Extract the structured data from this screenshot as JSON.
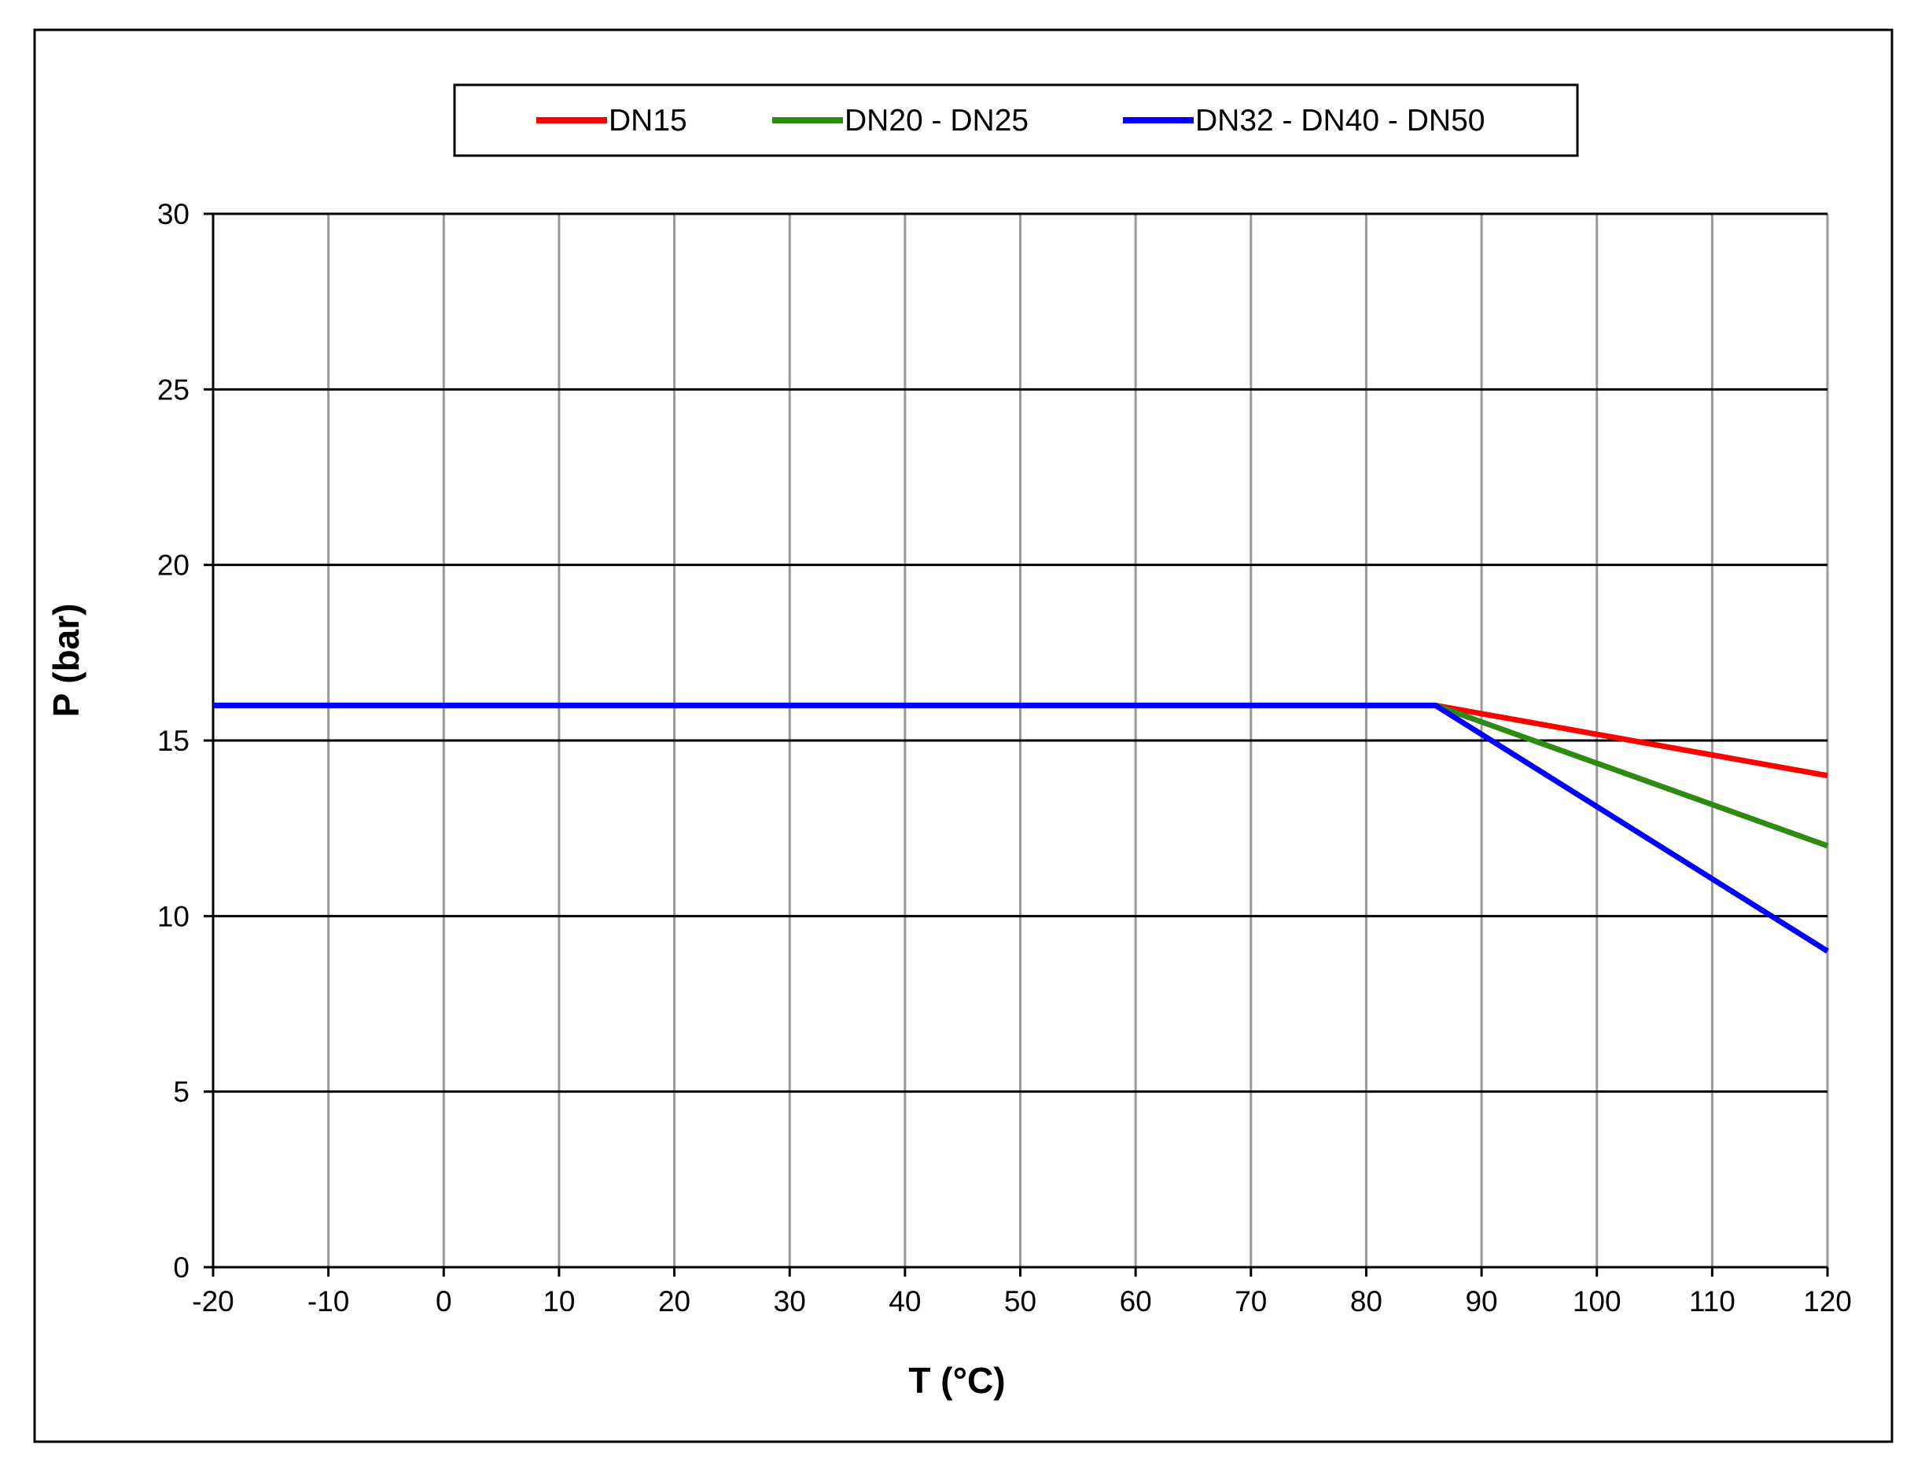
{
  "chart_data": {
    "type": "line",
    "title": "",
    "xlabel": "T (°C)",
    "ylabel": "P (bar)",
    "xlim": [
      -20,
      120
    ],
    "ylim": [
      0,
      30
    ],
    "xticks": [
      -20,
      -10,
      0,
      10,
      20,
      30,
      40,
      50,
      60,
      70,
      80,
      90,
      100,
      110,
      120
    ],
    "yticks": [
      0,
      5,
      10,
      15,
      20,
      25,
      30
    ],
    "grid": true,
    "legend_position": "top",
    "series": [
      {
        "name": "DN15",
        "color": "#ff0000",
        "x": [
          -20,
          86,
          120
        ],
        "y": [
          16,
          16,
          14
        ]
      },
      {
        "name": "DN20 - DN25",
        "color": "#2e8b12",
        "x": [
          -20,
          86,
          120
        ],
        "y": [
          16,
          16,
          12
        ]
      },
      {
        "name": "DN32 - DN40 - DN50",
        "color": "#0000ff",
        "x": [
          -20,
          86,
          120
        ],
        "y": [
          16,
          16,
          9
        ]
      }
    ]
  }
}
